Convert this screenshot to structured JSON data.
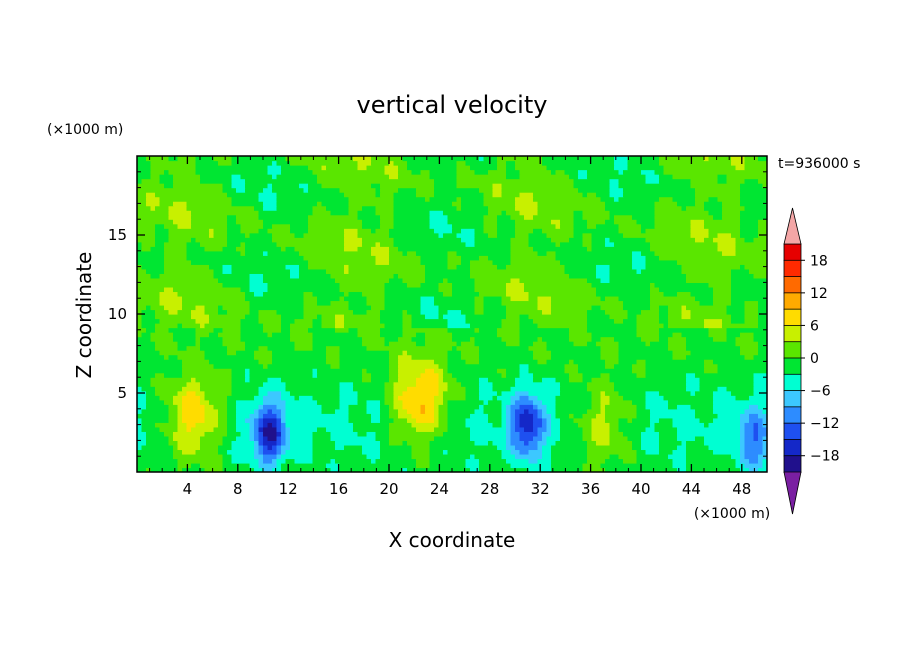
{
  "chart_data": {
    "type": "heatmap",
    "title": "vertical velocity",
    "xlabel": "X coordinate",
    "ylabel": "Z coordinate",
    "x_unit": "(×1000 m)",
    "y_unit": "(×1000 m)",
    "time_label": "t=936000 s",
    "xlim": [
      0,
      50
    ],
    "ylim": [
      0,
      20
    ],
    "x_ticks": [
      4,
      8,
      12,
      16,
      20,
      24,
      28,
      32,
      36,
      40,
      44,
      48
    ],
    "y_ticks": [
      5,
      10,
      15
    ],
    "colorbar": {
      "levels": [
        -21,
        -18,
        -15,
        -12,
        -9,
        -6,
        -3,
        0,
        3,
        6,
        9,
        12,
        15,
        18,
        21
      ],
      "tick_labels": [
        "18",
        "12",
        "6",
        "0",
        "−6",
        "−12",
        "−18"
      ],
      "tick_values": [
        18,
        12,
        6,
        0,
        -6,
        -12,
        -18
      ],
      "colors": [
        "#7a1fa2",
        "#20108c",
        "#1428c8",
        "#1e50f0",
        "#2d8cff",
        "#3cc8ff",
        "#00ffd2",
        "#00e632",
        "#5ae600",
        "#c8f000",
        "#ffdc00",
        "#ffaa00",
        "#ff6a00",
        "#ff2a00",
        "#e60000",
        "#f4a6a6"
      ],
      "extend": "both"
    },
    "features": [
      {
        "kind": "updraft",
        "x": 4.5,
        "z": 3.5,
        "peak": 11
      },
      {
        "kind": "updraft",
        "x": 22.5,
        "z": 4.5,
        "peak": 12
      },
      {
        "kind": "updraft",
        "x": 37.0,
        "z": 3.0,
        "peak": 7
      },
      {
        "kind": "downdraft",
        "x": 10.5,
        "z": 2.5,
        "peak": -15
      },
      {
        "kind": "downdraft",
        "x": 31.0,
        "z": 3.0,
        "peak": -14
      },
      {
        "kind": "downdraft",
        "x": 49.0,
        "z": 2.0,
        "peak": -9
      }
    ]
  }
}
